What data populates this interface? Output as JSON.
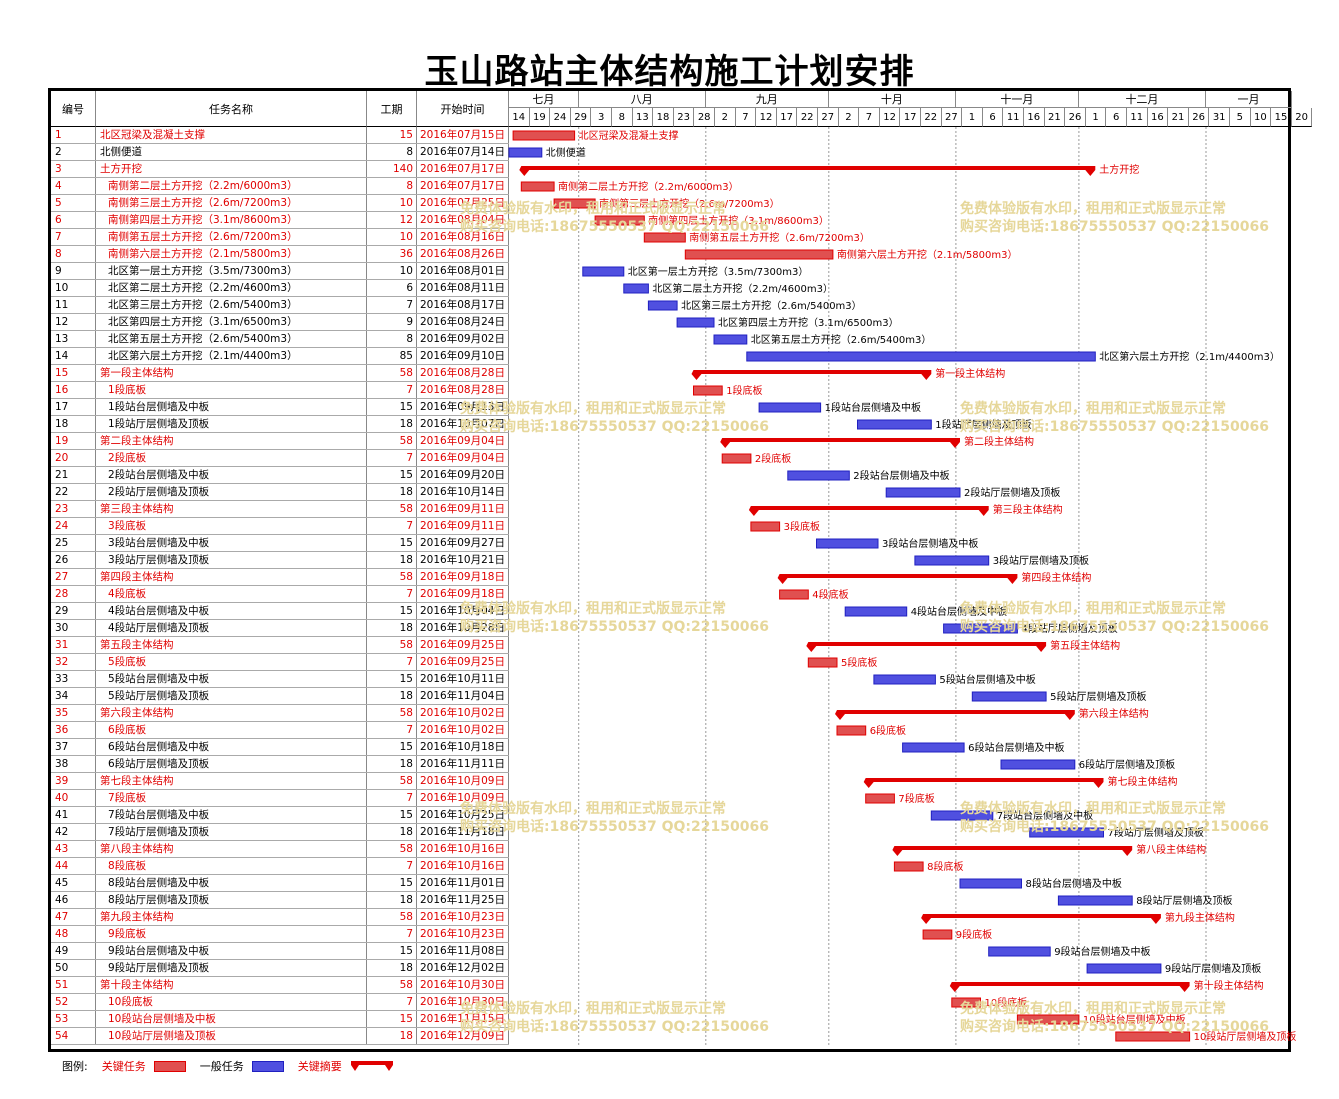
{
  "title": "玉山路站主体结构施工计划安排",
  "headers": {
    "id": "编号",
    "name": "任务名称",
    "duration": "工期",
    "start": "开始时间"
  },
  "months": [
    {
      "label": "七月",
      "start_day": 0,
      "end_day": 17
    },
    {
      "label": "八月",
      "start_day": 17,
      "end_day": 48
    },
    {
      "label": "九月",
      "start_day": 48,
      "end_day": 78
    },
    {
      "label": "十月",
      "start_day": 78,
      "end_day": 109
    },
    {
      "label": "十一月",
      "start_day": 109,
      "end_day": 139
    },
    {
      "label": "十二月",
      "start_day": 139,
      "end_day": 170
    },
    {
      "label": "一月",
      "start_day": 170,
      "end_day": 191
    }
  ],
  "day_ticks": [
    "14",
    "19",
    "24",
    "29",
    "3",
    "8",
    "13",
    "18",
    "23",
    "28",
    "2",
    "7",
    "12",
    "17",
    "22",
    "27",
    "2",
    "7",
    "12",
    "17",
    "22",
    "27",
    "1",
    "6",
    "11",
    "16",
    "21",
    "26",
    "1",
    "6",
    "11",
    "16",
    "21",
    "26",
    "31",
    "5",
    "10",
    "15",
    "20"
  ],
  "chart_data": {
    "type": "gantt",
    "timeline_start": "2016-07-14",
    "tasks": [
      {
        "id": "1",
        "name": "北区冠梁及混凝土支撑",
        "duration": 15,
        "start": "2016年07月15日",
        "kind": "critical",
        "level": 0,
        "bar_label": "北区冠梁及混凝土支撑"
      },
      {
        "id": "2",
        "name": "北侧便道",
        "duration": 8,
        "start": "2016年07月14日",
        "kind": "normal",
        "level": 0,
        "bar_label": "北侧便道"
      },
      {
        "id": "3",
        "name": "土方开挖",
        "duration": 140,
        "start": "2016年07月17日",
        "kind": "summary",
        "level": 0,
        "bar_label": "土方开挖"
      },
      {
        "id": "4",
        "name": "南侧第二层土方开挖（2.2m/6000m3）",
        "duration": 8,
        "start": "2016年07月17日",
        "kind": "critical",
        "level": 1,
        "bar_label": "南侧第二层土方开挖（2.2m/6000m3）"
      },
      {
        "id": "5",
        "name": "南侧第三层土方开挖（2.6m/7200m3）",
        "duration": 10,
        "start": "2016年07月25日",
        "kind": "critical",
        "level": 1,
        "bar_label": "南侧第三层土方开挖（2.6m/7200m3）"
      },
      {
        "id": "6",
        "name": "南侧第四层土方开挖（3.1m/8600m3）",
        "duration": 12,
        "start": "2016年08月04日",
        "kind": "critical",
        "level": 1,
        "bar_label": "南侧第四层土方开挖（3.1m/8600m3）"
      },
      {
        "id": "7",
        "name": "南侧第五层土方开挖（2.6m/7200m3）",
        "duration": 10,
        "start": "2016年08月16日",
        "kind": "critical",
        "level": 1,
        "bar_label": "南侧第五层土方开挖（2.6m/7200m3）"
      },
      {
        "id": "8",
        "name": "南侧第六层土方开挖（2.1m/5800m3）",
        "duration": 36,
        "start": "2016年08月26日",
        "kind": "critical",
        "level": 1,
        "bar_label": "南侧第六层土方开挖（2.1m/5800m3）"
      },
      {
        "id": "9",
        "name": "北区第一层土方开挖（3.5m/7300m3）",
        "duration": 10,
        "start": "2016年08月01日",
        "kind": "normal",
        "level": 1,
        "bar_label": "北区第一层土方开挖（3.5m/7300m3）"
      },
      {
        "id": "10",
        "name": "北区第二层土方开挖（2.2m/4600m3）",
        "duration": 6,
        "start": "2016年08月11日",
        "kind": "normal",
        "level": 1,
        "bar_label": "北区第二层土方开挖（2.2m/4600m3）"
      },
      {
        "id": "11",
        "name": "北区第三层土方开挖（2.6m/5400m3）",
        "duration": 7,
        "start": "2016年08月17日",
        "kind": "normal",
        "level": 1,
        "bar_label": "北区第三层土方开挖（2.6m/5400m3）"
      },
      {
        "id": "12",
        "name": "北区第四层土方开挖（3.1m/6500m3）",
        "duration": 9,
        "start": "2016年08月24日",
        "kind": "normal",
        "level": 1,
        "bar_label": "北区第四层土方开挖（3.1m/6500m3）"
      },
      {
        "id": "13",
        "name": "北区第五层土方开挖（2.6m/5400m3）",
        "duration": 8,
        "start": "2016年09月02日",
        "kind": "normal",
        "level": 1,
        "bar_label": "北区第五层土方开挖（2.6m/5400m3）"
      },
      {
        "id": "14",
        "name": "北区第六层土方开挖（2.1m/4400m3）",
        "duration": 85,
        "start": "2016年09月10日",
        "kind": "normal",
        "level": 1,
        "bar_label": "北区第六层土方开挖（2.1m/4400m3）"
      },
      {
        "id": "15",
        "name": "第一段主体结构",
        "duration": 58,
        "start": "2016年08月28日",
        "kind": "summary",
        "level": 0,
        "bar_label": "第一段主体结构"
      },
      {
        "id": "16",
        "name": "1段底板",
        "duration": 7,
        "start": "2016年08月28日",
        "kind": "critical",
        "level": 1,
        "bar_label": "1段底板"
      },
      {
        "id": "17",
        "name": "1段站台层侧墙及中板",
        "duration": 15,
        "start": "2016年09月13日",
        "kind": "normal",
        "level": 1,
        "bar_label": "1段站台层侧墙及中板"
      },
      {
        "id": "18",
        "name": "1段站厅层侧墙及顶板",
        "duration": 18,
        "start": "2016年10月07日",
        "kind": "normal",
        "level": 1,
        "bar_label": "1段站厅层侧墙及顶板"
      },
      {
        "id": "19",
        "name": "第二段主体结构",
        "duration": 58,
        "start": "2016年09月04日",
        "kind": "summary",
        "level": 0,
        "bar_label": "第二段主体结构"
      },
      {
        "id": "20",
        "name": "2段底板",
        "duration": 7,
        "start": "2016年09月04日",
        "kind": "critical",
        "level": 1,
        "bar_label": "2段底板"
      },
      {
        "id": "21",
        "name": "2段站台层侧墙及中板",
        "duration": 15,
        "start": "2016年09月20日",
        "kind": "normal",
        "level": 1,
        "bar_label": "2段站台层侧墙及中板"
      },
      {
        "id": "22",
        "name": "2段站厅层侧墙及顶板",
        "duration": 18,
        "start": "2016年10月14日",
        "kind": "normal",
        "level": 1,
        "bar_label": "2段站厅层侧墙及顶板"
      },
      {
        "id": "23",
        "name": "第三段主体结构",
        "duration": 58,
        "start": "2016年09月11日",
        "kind": "summary",
        "level": 0,
        "bar_label": "第三段主体结构"
      },
      {
        "id": "24",
        "name": "3段底板",
        "duration": 7,
        "start": "2016年09月11日",
        "kind": "critical",
        "level": 1,
        "bar_label": "3段底板"
      },
      {
        "id": "25",
        "name": "3段站台层侧墙及中板",
        "duration": 15,
        "start": "2016年09月27日",
        "kind": "normal",
        "level": 1,
        "bar_label": "3段站台层侧墙及中板"
      },
      {
        "id": "26",
        "name": "3段站厅层侧墙及顶板",
        "duration": 18,
        "start": "2016年10月21日",
        "kind": "normal",
        "level": 1,
        "bar_label": "3段站厅层侧墙及顶板"
      },
      {
        "id": "27",
        "name": "第四段主体结构",
        "duration": 58,
        "start": "2016年09月18日",
        "kind": "summary",
        "level": 0,
        "bar_label": "第四段主体结构"
      },
      {
        "id": "28",
        "name": "4段底板",
        "duration": 7,
        "start": "2016年09月18日",
        "kind": "critical",
        "level": 1,
        "bar_label": "4段底板"
      },
      {
        "id": "29",
        "name": "4段站台层侧墙及中板",
        "duration": 15,
        "start": "2016年10月04日",
        "kind": "normal",
        "level": 1,
        "bar_label": "4段站台层侧墙及中板"
      },
      {
        "id": "30",
        "name": "4段站厅层侧墙及顶板",
        "duration": 18,
        "start": "2016年10月28日",
        "kind": "normal",
        "level": 1,
        "bar_label": "4段站厅层侧墙及顶板"
      },
      {
        "id": "31",
        "name": "第五段主体结构",
        "duration": 58,
        "start": "2016年09月25日",
        "kind": "summary",
        "level": 0,
        "bar_label": "第五段主体结构"
      },
      {
        "id": "32",
        "name": "5段底板",
        "duration": 7,
        "start": "2016年09月25日",
        "kind": "critical",
        "level": 1,
        "bar_label": "5段底板"
      },
      {
        "id": "33",
        "name": "5段站台层侧墙及中板",
        "duration": 15,
        "start": "2016年10月11日",
        "kind": "normal",
        "level": 1,
        "bar_label": "5段站台层侧墙及中板"
      },
      {
        "id": "34",
        "name": "5段站厅层侧墙及顶板",
        "duration": 18,
        "start": "2016年11月04日",
        "kind": "normal",
        "level": 1,
        "bar_label": "5段站厅层侧墙及顶板"
      },
      {
        "id": "35",
        "name": "第六段主体结构",
        "duration": 58,
        "start": "2016年10月02日",
        "kind": "summary",
        "level": 0,
        "bar_label": "第六段主体结构"
      },
      {
        "id": "36",
        "name": "6段底板",
        "duration": 7,
        "start": "2016年10月02日",
        "kind": "critical",
        "level": 1,
        "bar_label": "6段底板"
      },
      {
        "id": "37",
        "name": "6段站台层侧墙及中板",
        "duration": 15,
        "start": "2016年10月18日",
        "kind": "normal",
        "level": 1,
        "bar_label": "6段站台层侧墙及中板"
      },
      {
        "id": "38",
        "name": "6段站厅层侧墙及顶板",
        "duration": 18,
        "start": "2016年11月11日",
        "kind": "normal",
        "level": 1,
        "bar_label": "6段站厅层侧墙及顶板"
      },
      {
        "id": "39",
        "name": "第七段主体结构",
        "duration": 58,
        "start": "2016年10月09日",
        "kind": "summary",
        "level": 0,
        "bar_label": "第七段主体结构"
      },
      {
        "id": "40",
        "name": "7段底板",
        "duration": 7,
        "start": "2016年10月09日",
        "kind": "critical",
        "level": 1,
        "bar_label": "7段底板"
      },
      {
        "id": "41",
        "name": "7段站台层侧墙及中板",
        "duration": 15,
        "start": "2016年10月25日",
        "kind": "normal",
        "level": 1,
        "bar_label": "7段站台层侧墙及中板"
      },
      {
        "id": "42",
        "name": "7段站厅层侧墙及顶板",
        "duration": 18,
        "start": "2016年11月18日",
        "kind": "normal",
        "level": 1,
        "bar_label": "7段站厅层侧墙及顶板"
      },
      {
        "id": "43",
        "name": "第八段主体结构",
        "duration": 58,
        "start": "2016年10月16日",
        "kind": "summary",
        "level": 0,
        "bar_label": "第八段主体结构"
      },
      {
        "id": "44",
        "name": "8段底板",
        "duration": 7,
        "start": "2016年10月16日",
        "kind": "critical",
        "level": 1,
        "bar_label": "8段底板"
      },
      {
        "id": "45",
        "name": "8段站台层侧墙及中板",
        "duration": 15,
        "start": "2016年11月01日",
        "kind": "normal",
        "level": 1,
        "bar_label": "8段站台层侧墙及中板"
      },
      {
        "id": "46",
        "name": "8段站厅层侧墙及顶板",
        "duration": 18,
        "start": "2016年11月25日",
        "kind": "normal",
        "level": 1,
        "bar_label": "8段站厅层侧墙及顶板"
      },
      {
        "id": "47",
        "name": "第九段主体结构",
        "duration": 58,
        "start": "2016年10月23日",
        "kind": "summary",
        "level": 0,
        "bar_label": "第九段主体结构"
      },
      {
        "id": "48",
        "name": "9段底板",
        "duration": 7,
        "start": "2016年10月23日",
        "kind": "critical",
        "level": 1,
        "bar_label": "9段底板"
      },
      {
        "id": "49",
        "name": "9段站台层侧墙及中板",
        "duration": 15,
        "start": "2016年11月08日",
        "kind": "normal",
        "level": 1,
        "bar_label": "9段站台层侧墙及中板"
      },
      {
        "id": "50",
        "name": "9段站厅层侧墙及顶板",
        "duration": 18,
        "start": "2016年12月02日",
        "kind": "normal",
        "level": 1,
        "bar_label": "9段站厅层侧墙及顶板"
      },
      {
        "id": "51",
        "name": "第十段主体结构",
        "duration": 58,
        "start": "2016年10月30日",
        "kind": "summary",
        "level": 0,
        "bar_label": "第十段主体结构"
      },
      {
        "id": "52",
        "name": "10段底板",
        "duration": 7,
        "start": "2016年10月30日",
        "kind": "critical",
        "level": 1,
        "bar_label": "10段底板"
      },
      {
        "id": "53",
        "name": "10段站台层侧墙及中板",
        "duration": 15,
        "start": "2016年11月15日",
        "kind": "critical",
        "level": 1,
        "bar_label": "10段站台层侧墙及中板"
      },
      {
        "id": "54",
        "name": "10段站厅层侧墙及顶板",
        "duration": 18,
        "start": "2016年12月09日",
        "kind": "critical",
        "level": 1,
        "bar_label": "10段站厅层侧墙及顶板"
      }
    ]
  },
  "watermark": {
    "line1": "免费体验版有水印，租用和正式版显示正常",
    "line2": "购买咨询电话:18675550537 QQ:22150066"
  },
  "legend": {
    "title": "图例:",
    "critical": "关键任务",
    "normal": "一般任务",
    "summary": "关键摘要"
  },
  "colors": {
    "critical": "#e00000",
    "critical_fill": "#e05050",
    "normal": "#2020c0",
    "normal_fill": "#5050e0",
    "text_critical": "#e00000",
    "watermark": "#e6d79a"
  }
}
